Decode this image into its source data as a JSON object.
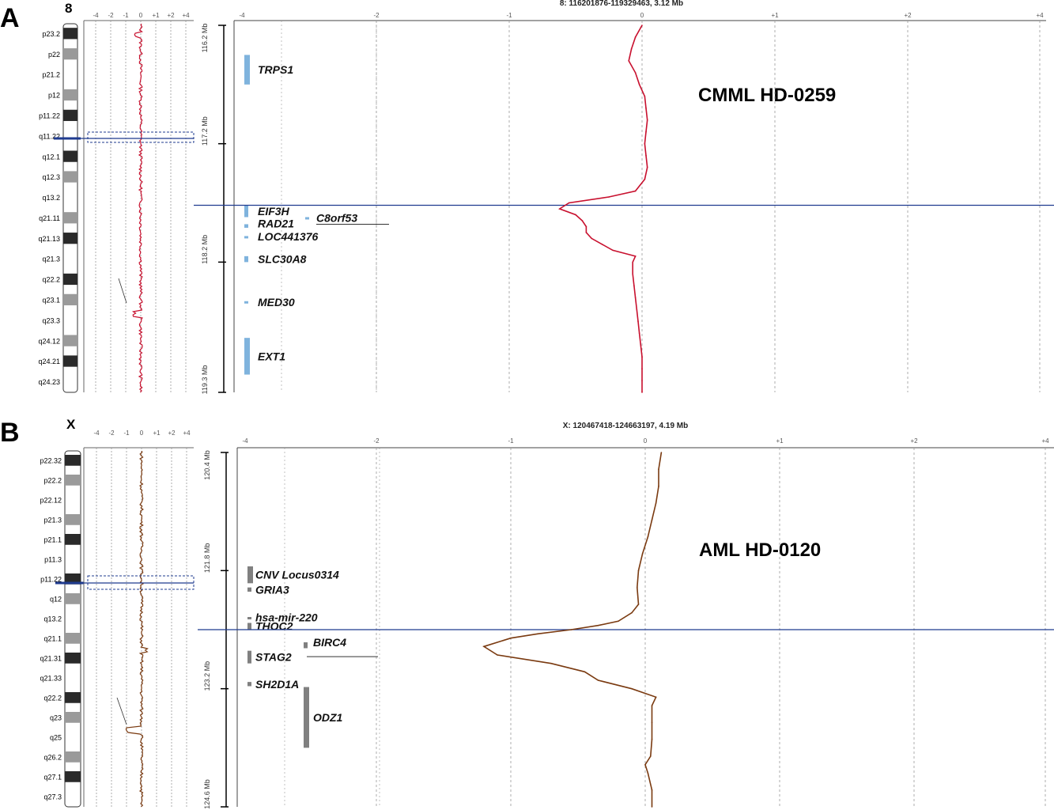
{
  "colors": {
    "trace_A": "#c8102e",
    "trace_B": "#7a3a10",
    "breakpoint_line": "#1f3b8f",
    "gene_A": "#7fb3dd",
    "gene_B": "#808080",
    "grid": "#999999"
  },
  "chart_data": [
    {
      "type": "line",
      "panel": "A",
      "chromosome": "8",
      "sample_label": "CMML HD-0259",
      "region_title": "8: 116201876-119329463, 3.12 Mb",
      "overview_ticks": [
        "-4",
        "-2",
        "-1",
        "0",
        "+1",
        "+2",
        "+4"
      ],
      "detail_ticks": [
        "-4",
        "-2",
        "-1",
        "0",
        "+1",
        "+2",
        "+4"
      ],
      "detail_tick_values": [
        -4,
        -2,
        -1,
        0,
        1,
        2,
        4
      ],
      "mb_axis": {
        "labels": [
          "116.2 Mb",
          "117.2 Mb",
          "118.2 Mb",
          "119.3 Mb"
        ],
        "values": [
          116.2,
          117.2,
          118.2,
          119.3
        ],
        "range": [
          116.2,
          119.3
        ]
      },
      "bands": [
        "p23.2",
        "p22",
        "p21.2",
        "p12",
        "p11.22",
        "q11.22",
        "q12.1",
        "q12.3",
        "q13.2",
        "q21.11",
        "q21.13",
        "q21.3",
        "q22.2",
        "q23.1",
        "q23.3",
        "q24.12",
        "q24.21",
        "q24.23"
      ],
      "genes": [
        {
          "name": "TRPS1",
          "start": 116.45,
          "end": 116.7
        },
        {
          "name": "EIF3H",
          "start": 117.72,
          "end": 117.82
        },
        {
          "name": "C8orf53",
          "start": 117.82,
          "end": 117.83
        },
        {
          "name": "RAD21",
          "start": 117.88,
          "end": 117.91
        },
        {
          "name": "LOC441376",
          "start": 117.98,
          "end": 117.99
        },
        {
          "name": "SLC30A8",
          "start": 118.15,
          "end": 118.2
        },
        {
          "name": "MED30",
          "start": 118.53,
          "end": 118.55
        },
        {
          "name": "EXT1",
          "start": 118.84,
          "end": 119.15
        }
      ],
      "breakpoint_mb": 117.72,
      "x": [
        116.2,
        116.3,
        116.4,
        116.5,
        116.6,
        116.7,
        116.8,
        116.9,
        117.0,
        117.1,
        117.2,
        117.3,
        117.4,
        117.5,
        117.6,
        117.65,
        117.7,
        117.75,
        117.8,
        117.85,
        117.9,
        117.95,
        118.0,
        118.05,
        118.1,
        118.15,
        118.2,
        118.3,
        118.4,
        118.5,
        118.6,
        118.7,
        118.8,
        118.9,
        119.0,
        119.1,
        119.2,
        119.3
      ],
      "y": [
        0.0,
        -0.05,
        -0.08,
        -0.1,
        -0.05,
        -0.02,
        0.02,
        0.03,
        0.04,
        0.03,
        0.02,
        0.03,
        0.04,
        0.02,
        -0.05,
        -0.25,
        -0.55,
        -0.62,
        -0.5,
        -0.45,
        -0.42,
        -0.42,
        -0.38,
        -0.3,
        -0.22,
        -0.05,
        -0.07,
        -0.07,
        -0.06,
        -0.05,
        -0.04,
        -0.03,
        -0.02,
        -0.01,
        0.0,
        0.0,
        0.0,
        0.0
      ],
      "overview_arrow_band": "q22.2"
    },
    {
      "type": "line",
      "panel": "B",
      "chromosome": "X",
      "sample_label": "AML HD-0120",
      "region_title": "X: 120467418-124663197, 4.19 Mb",
      "overview_ticks": [
        "-4",
        "-2",
        "-1",
        "0",
        "+1",
        "+2",
        "+4"
      ],
      "detail_ticks": [
        "-4",
        "-2",
        "-1",
        "0",
        "+1",
        "+2",
        "+4"
      ],
      "detail_tick_values": [
        -4,
        -2,
        -1,
        0,
        1,
        2,
        4
      ],
      "mb_axis": {
        "labels": [
          "120.4 Mb",
          "121.8 Mb",
          "123.2 Mb",
          "124.6 Mb"
        ],
        "values": [
          120.4,
          121.8,
          123.2,
          124.6
        ],
        "range": [
          120.4,
          124.6
        ]
      },
      "bands": [
        "p22.32",
        "p22.2",
        "p22.12",
        "p21.3",
        "p21.1",
        "p11.3",
        "p11.22",
        "q12",
        "q13.2",
        "q21.1",
        "q21.31",
        "q21.33",
        "q22.2",
        "q23",
        "q25",
        "q26.2",
        "q27.1",
        "q27.3"
      ],
      "genes": [
        {
          "name": "CNV Locus0314",
          "start": 121.75,
          "end": 121.95
        },
        {
          "name": "GRIA3",
          "start": 122.0,
          "end": 122.05
        },
        {
          "name": "hsa-mir-220",
          "start": 122.35,
          "end": 122.36
        },
        {
          "name": "THOC2",
          "start": 122.42,
          "end": 122.5
        },
        {
          "name": "BIRC4",
          "start": 122.65,
          "end": 122.72
        },
        {
          "name": "STAG2",
          "start": 122.75,
          "end": 122.9
        },
        {
          "name": "SH2D1A",
          "start": 123.12,
          "end": 123.17
        },
        {
          "name": "ODZ1",
          "start": 123.18,
          "end": 123.9
        }
      ],
      "breakpoint_mb": 122.5,
      "x": [
        120.4,
        120.6,
        120.8,
        121.0,
        121.2,
        121.4,
        121.6,
        121.8,
        122.0,
        122.2,
        122.3,
        122.4,
        122.45,
        122.5,
        122.55,
        122.6,
        122.7,
        122.8,
        122.9,
        123.0,
        123.1,
        123.2,
        123.3,
        123.4,
        123.6,
        123.8,
        124.0,
        124.1,
        124.2,
        124.4,
        124.6
      ],
      "y": [
        0.12,
        0.1,
        0.1,
        0.08,
        0.05,
        0.02,
        -0.02,
        -0.05,
        -0.06,
        -0.05,
        -0.1,
        -0.2,
        -0.35,
        -0.55,
        -0.8,
        -1.0,
        -1.2,
        -1.1,
        -0.7,
        -0.45,
        -0.35,
        -0.1,
        0.08,
        0.05,
        0.05,
        0.05,
        0.04,
        0.0,
        0.02,
        0.05,
        0.05
      ],
      "overview_arrow_band": "q23"
    }
  ]
}
